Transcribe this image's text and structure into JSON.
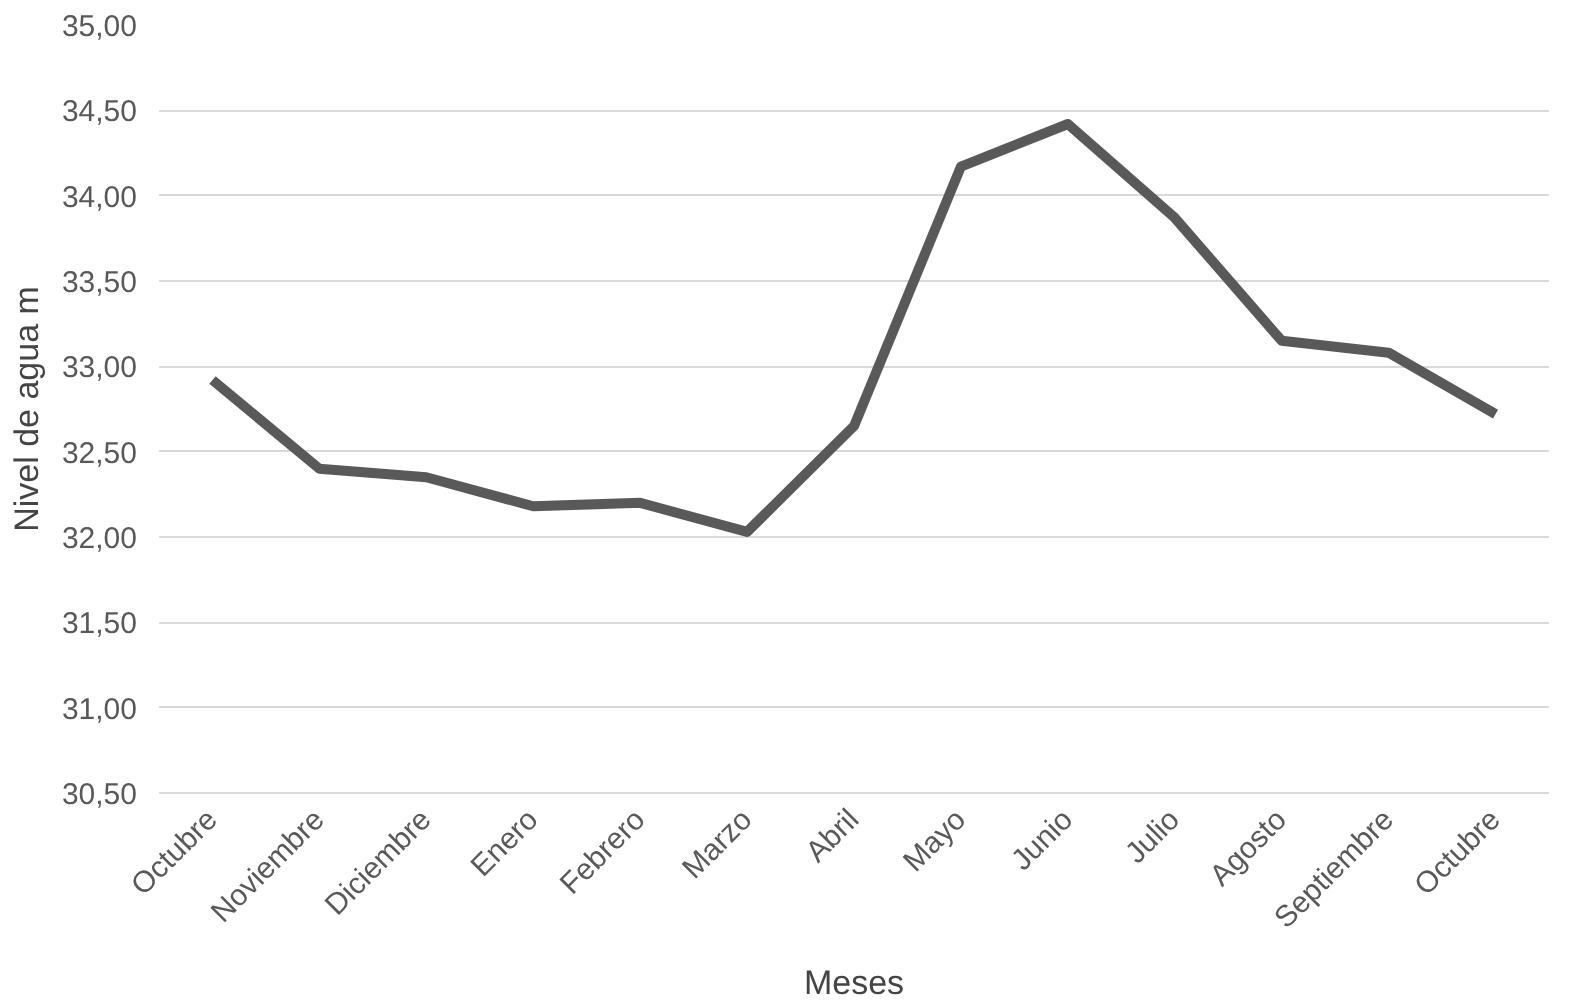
{
  "chart_data": {
    "type": "line",
    "xlabel": "Meses",
    "ylabel": "Nivel de agua m",
    "categories": [
      "Octubre",
      "Noviembre",
      "Diciembre",
      "Enero",
      "Febrero",
      "Marzo",
      "Abril",
      "Mayo",
      "Junio",
      "Julio",
      "Agosto",
      "Septiembre",
      "Octubre"
    ],
    "series": [
      {
        "color": "#595959",
        "values": [
          32.92,
          32.4,
          32.35,
          32.18,
          32.2,
          32.03,
          32.65,
          34.17,
          34.42,
          33.87,
          33.15,
          33.08,
          32.72
        ]
      }
    ],
    "ylim": [
      30.5,
      35
    ],
    "yticks": [
      {
        "value": 30.5,
        "label": "30,50"
      },
      {
        "value": 31,
        "label": "31,00"
      },
      {
        "value": 31.5,
        "label": "31,50"
      },
      {
        "value": 32,
        "label": "32,00"
      },
      {
        "value": 32.5,
        "label": "32,50"
      },
      {
        "value": 33,
        "label": "33,00"
      },
      {
        "value": 33.5,
        "label": "33,50"
      },
      {
        "value": 34,
        "label": "34,00"
      },
      {
        "value": 34.5,
        "label": "34,50"
      },
      {
        "value": 35,
        "label": "35,00"
      }
    ],
    "grid": "y",
    "marker": "none",
    "line_style": "solid"
  }
}
